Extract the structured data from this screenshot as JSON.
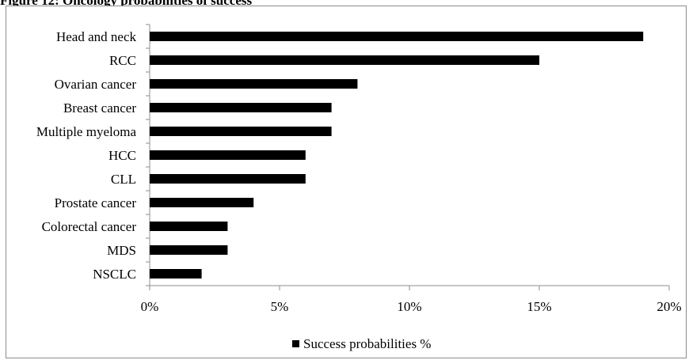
{
  "figure": {
    "title": "Figure 12: Oncology probabilities of success"
  },
  "chart_data": {
    "type": "bar",
    "orientation": "horizontal",
    "categories": [
      "Head and neck",
      "RCC",
      "Ovarian cancer",
      "Breast cancer",
      "Multiple myeloma",
      "HCC",
      "CLL",
      "Prostate cancer",
      "Colorectal cancer",
      "MDS",
      "NSCLC"
    ],
    "series": [
      {
        "name": "Success probabilities %",
        "values": [
          19,
          15,
          8,
          7,
          7,
          6,
          6,
          4,
          3,
          3,
          2
        ],
        "color": "#000000"
      }
    ],
    "x_ticks": [
      0,
      5,
      10,
      15,
      20
    ],
    "x_tick_labels": [
      "0%",
      "5%",
      "10%",
      "15%",
      "20%"
    ],
    "xlim": [
      0,
      20
    ],
    "xlabel": "",
    "ylabel": "",
    "grid": false,
    "legend_position": "bottom"
  }
}
